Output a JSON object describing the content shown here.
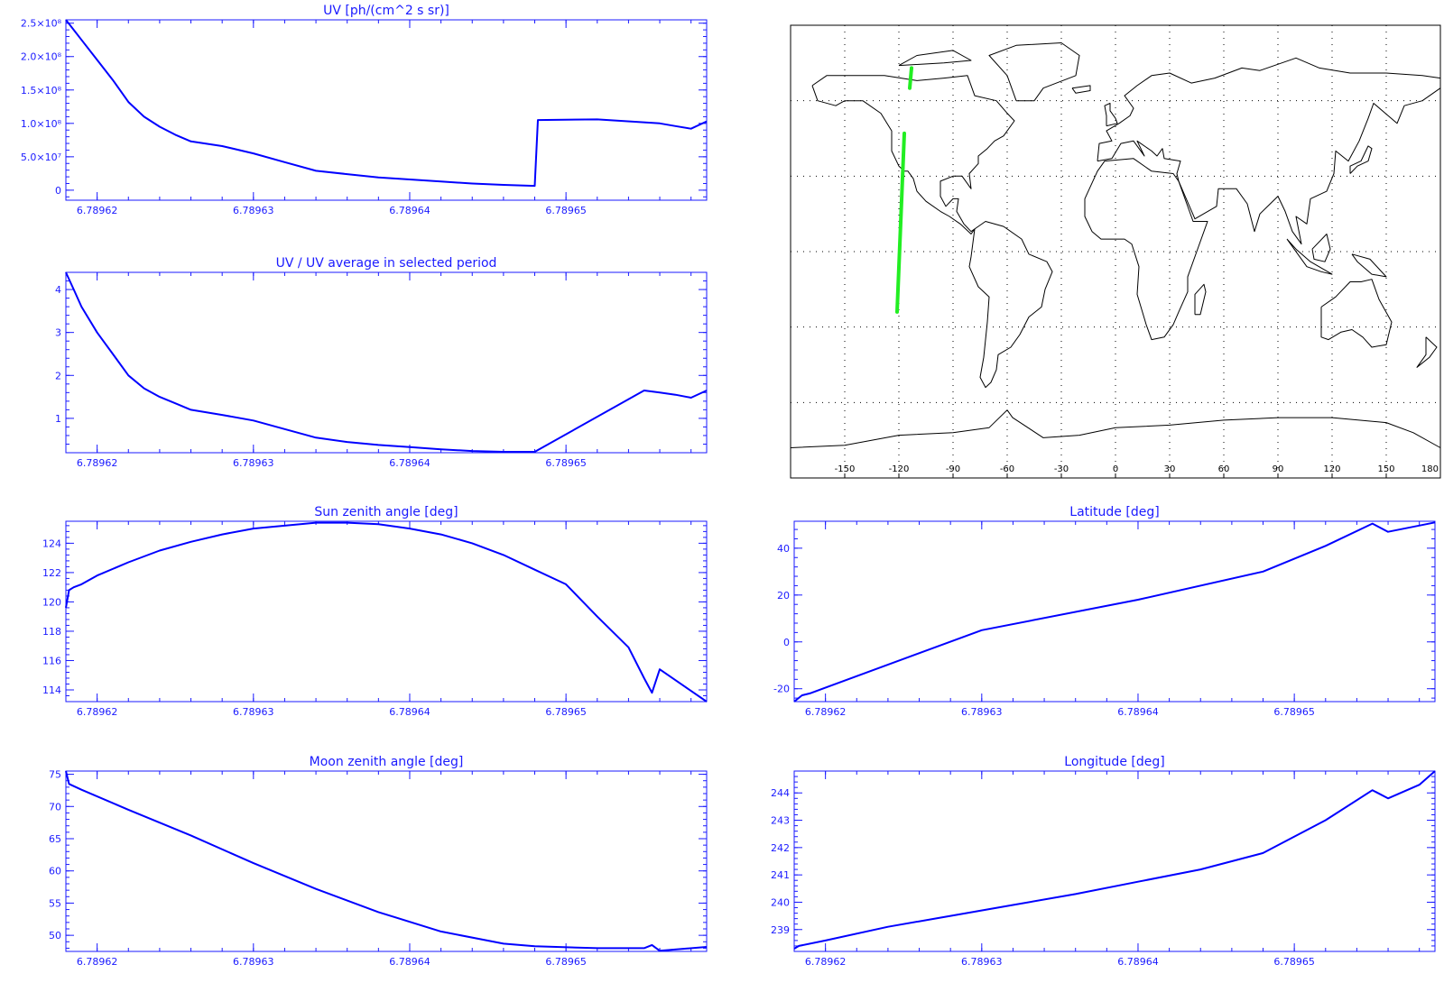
{
  "colors": {
    "axis": "#1a1aff",
    "series": "#0000ff",
    "map_coast": "#000000",
    "map_grid": "#000000",
    "map_track": "#22ee22"
  },
  "chart_data": [
    {
      "type": "line",
      "title": "UV [ph/(cm^2 s sr)]",
      "xlabel": "",
      "ylabel": "",
      "xlim": [
        6.789618,
        6.789659
      ],
      "ylim": [
        -15000000.0,
        255000000.0
      ],
      "x_ticks": [
        6.78962,
        6.78963,
        6.78964,
        6.78965
      ],
      "x_tick_labels": [
        "6.78962",
        "6.78963",
        "6.78964",
        "6.78965"
      ],
      "y_ticks": [
        0,
        50000000.0,
        100000000.0,
        150000000.0,
        200000000.0,
        250000000.0
      ],
      "y_tick_labels": [
        "0",
        "5.0×10⁷",
        "1.0×10⁸",
        "1.5×10⁸",
        "2.0×10⁸",
        "2.5×10⁸"
      ],
      "x": [
        6.789618,
        6.7896185,
        6.789619,
        6.78962,
        6.789621,
        6.789622,
        6.789623,
        6.789624,
        6.789625,
        6.789626,
        6.789628,
        6.78963,
        6.789632,
        6.789634,
        6.789636,
        6.789638,
        6.78964,
        6.789642,
        6.789644,
        6.789646,
        6.789648,
        6.7896482,
        6.789652,
        6.789656,
        6.789657,
        6.789658,
        6.789659
      ],
      "values": [
        255000000.0,
        240000000.0,
        225000000.0,
        195000000.0,
        165000000.0,
        132000000.0,
        110000000.0,
        95000000.0,
        83000000.0,
        73000000.0,
        66000000.0,
        55000000.0,
        42000000.0,
        29000000.0,
        24000000.0,
        19000000.0,
        16000000.0,
        13000000.0,
        10000000.0,
        8000000.0,
        6500000.0,
        105000000.0,
        106000000.0,
        100000000.0,
        96000000.0,
        92000000.0,
        103000000.0
      ]
    },
    {
      "type": "line",
      "title": "UV / UV average in selected period",
      "xlabel": "",
      "ylabel": "",
      "xlim": [
        6.789618,
        6.789659
      ],
      "ylim": [
        0.2,
        4.4
      ],
      "x_ticks": [
        6.78962,
        6.78963,
        6.78964,
        6.78965
      ],
      "x_tick_labels": [
        "6.78962",
        "6.78963",
        "6.78964",
        "6.78965"
      ],
      "y_ticks": [
        1,
        2,
        3,
        4
      ],
      "y_tick_labels": [
        "1",
        "2",
        "3",
        "4"
      ],
      "x": [
        6.789618,
        6.7896185,
        6.789619,
        6.78962,
        6.789621,
        6.789622,
        6.789623,
        6.789624,
        6.789625,
        6.789626,
        6.789628,
        6.78963,
        6.789632,
        6.789634,
        6.789636,
        6.789638,
        6.78964,
        6.789642,
        6.789644,
        6.789646,
        6.789648,
        6.789655,
        6.789656,
        6.789657,
        6.789658,
        6.789659
      ],
      "values": [
        4.4,
        4.0,
        3.6,
        3.0,
        2.5,
        2.0,
        1.7,
        1.5,
        1.35,
        1.2,
        1.08,
        0.95,
        0.75,
        0.55,
        0.45,
        0.38,
        0.33,
        0.28,
        0.24,
        0.22,
        0.22,
        1.65,
        1.6,
        1.55,
        1.48,
        1.65
      ]
    },
    {
      "type": "line",
      "title": "Sun zenith angle [deg]",
      "xlabel": "",
      "ylabel": "",
      "xlim": [
        6.789618,
        6.789659
      ],
      "ylim": [
        113.2,
        125.5
      ],
      "x_ticks": [
        6.78962,
        6.78963,
        6.78964,
        6.78965
      ],
      "x_tick_labels": [
        "6.78962",
        "6.78963",
        "6.78964",
        "6.78965"
      ],
      "y_ticks": [
        114,
        116,
        118,
        120,
        122,
        124
      ],
      "y_tick_labels": [
        "114",
        "116",
        "118",
        "120",
        "122",
        "124"
      ],
      "x": [
        6.789618,
        6.7896182,
        6.7896185,
        6.789619,
        6.78962,
        6.789622,
        6.789624,
        6.789626,
        6.789628,
        6.78963,
        6.789632,
        6.789634,
        6.789636,
        6.789638,
        6.78964,
        6.789642,
        6.789644,
        6.789646,
        6.789648,
        6.78965,
        6.789652,
        6.789654,
        6.789655,
        6.7896555,
        6.789656,
        6.789659
      ],
      "values": [
        119.6,
        120.8,
        121.0,
        121.2,
        121.8,
        122.7,
        123.5,
        124.1,
        124.6,
        125.0,
        125.2,
        125.4,
        125.4,
        125.3,
        125.0,
        124.6,
        124.0,
        123.2,
        122.2,
        121.2,
        119.0,
        116.9,
        114.8,
        113.8,
        115.4,
        113.2
      ]
    },
    {
      "type": "line",
      "title": "Latitude [deg]",
      "xlabel": "",
      "ylabel": "",
      "xlim": [
        6.789618,
        6.789659
      ],
      "ylim": [
        -25.5,
        51.5
      ],
      "x_ticks": [
        6.78962,
        6.78963,
        6.78964,
        6.78965
      ],
      "x_tick_labels": [
        "6.78962",
        "6.78963",
        "6.78964",
        "6.78965"
      ],
      "y_ticks": [
        -20,
        0,
        20,
        40
      ],
      "y_tick_labels": [
        "-20",
        "0",
        "20",
        "40"
      ],
      "x": [
        6.789618,
        6.7896185,
        6.789619,
        6.78963,
        6.78964,
        6.789648,
        6.789652,
        6.789655,
        6.789656,
        6.789659
      ],
      "values": [
        -25.5,
        -22.8,
        -22.0,
        5.0,
        18.0,
        30.0,
        41.0,
        50.5,
        47.0,
        51.0
      ]
    },
    {
      "type": "line",
      "title": "Moon zenith angle [deg]",
      "xlabel": "",
      "ylabel": "",
      "xlim": [
        6.789618,
        6.789659
      ],
      "ylim": [
        47.5,
        75.5
      ],
      "x_ticks": [
        6.78962,
        6.78963,
        6.78964,
        6.78965
      ],
      "x_tick_labels": [
        "6.78962",
        "6.78963",
        "6.78964",
        "6.78965"
      ],
      "y_ticks": [
        50,
        55,
        60,
        65,
        70,
        75
      ],
      "y_tick_labels": [
        "50",
        "55",
        "60",
        "65",
        "70",
        "75"
      ],
      "x": [
        6.789618,
        6.7896182,
        6.789619,
        6.789622,
        6.789626,
        6.78963,
        6.789634,
        6.789638,
        6.789642,
        6.789646,
        6.789648,
        6.789652,
        6.789655,
        6.7896555,
        6.789656,
        6.789659
      ],
      "values": [
        75.5,
        73.5,
        72.6,
        69.5,
        65.5,
        61.2,
        57.2,
        53.6,
        50.6,
        48.7,
        48.3,
        48.0,
        48.0,
        48.5,
        47.6,
        48.2
      ]
    },
    {
      "type": "line",
      "title": "Longitude [deg]",
      "xlabel": "",
      "ylabel": "",
      "xlim": [
        6.789618,
        6.789659
      ],
      "ylim": [
        238.2,
        244.8
      ],
      "x_ticks": [
        6.78962,
        6.78963,
        6.78964,
        6.78965
      ],
      "x_tick_labels": [
        "6.78962",
        "6.78963",
        "6.78964",
        "6.78965"
      ],
      "y_ticks": [
        239,
        240,
        241,
        242,
        243,
        244
      ],
      "y_tick_labels": [
        "239",
        "240",
        "241",
        "242",
        "243",
        "244"
      ],
      "x": [
        6.789618,
        6.7896183,
        6.78962,
        6.789624,
        6.789628,
        6.789632,
        6.789636,
        6.78964,
        6.789644,
        6.789648,
        6.789652,
        6.789655,
        6.789656,
        6.789658,
        6.789659
      ],
      "values": [
        238.3,
        238.4,
        238.6,
        239.1,
        239.5,
        239.9,
        240.3,
        240.75,
        241.2,
        241.8,
        243.0,
        244.1,
        243.8,
        244.3,
        244.8
      ]
    }
  ],
  "map": {
    "x_tick_labels": [
      "-150",
      "-120",
      "-90",
      "-60",
      "-30",
      "0",
      "30",
      "60",
      "90",
      "120",
      "150",
      "180"
    ],
    "track_segments": [
      {
        "name": "track-main",
        "points": [
          [
            -117,
            47
          ],
          [
            -121,
            -24
          ]
        ]
      },
      {
        "name": "track-north",
        "points": [
          [
            -113,
            73
          ],
          [
            -114,
            65
          ]
        ]
      }
    ]
  }
}
